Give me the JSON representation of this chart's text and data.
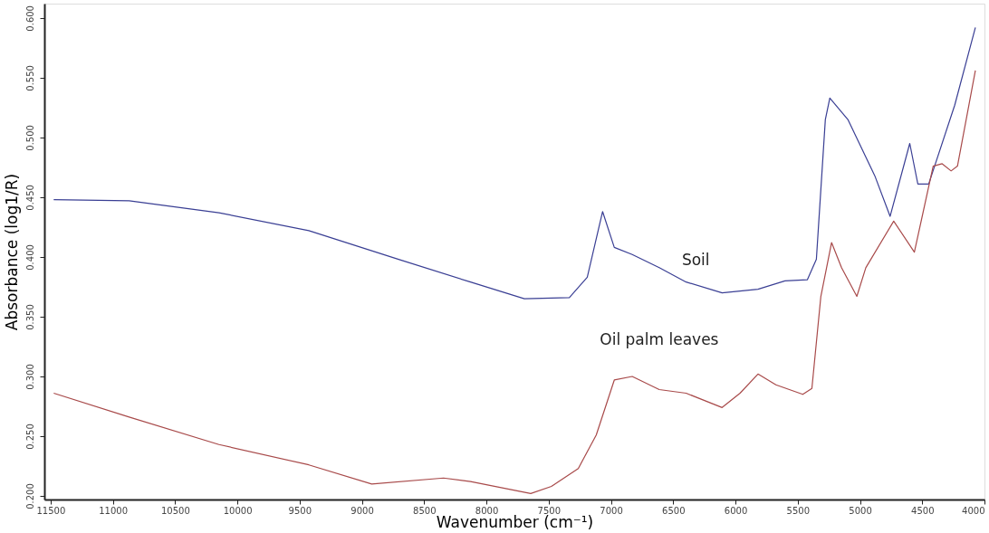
{
  "chart_data": {
    "type": "line",
    "xlabel": "Wavenumber (cm⁻¹)",
    "ylabel": "Absorbance (log1/R)",
    "xlim": [
      11550,
      4000
    ],
    "ylim": [
      0.197,
      0.612
    ],
    "xticks": [
      11500,
      11000,
      10500,
      10000,
      9500,
      9000,
      8500,
      8000,
      7500,
      7000,
      6500,
      6000,
      5500,
      5000,
      4500,
      4000
    ],
    "yticks": [
      {
        "value": 0.2,
        "label": "0.200"
      },
      {
        "value": 0.25,
        "label": "0.250"
      },
      {
        "value": 0.3,
        "label": "0.300"
      },
      {
        "value": 0.35,
        "label": "0.350"
      },
      {
        "value": 0.4,
        "label": "0.400"
      },
      {
        "value": 0.45,
        "label": "0.450"
      },
      {
        "value": 0.5,
        "label": "0.500"
      },
      {
        "value": 0.55,
        "label": "0.550"
      },
      {
        "value": 0.6,
        "label": "0.600"
      }
    ],
    "grid": false,
    "marker": "none",
    "line_style": "solid",
    "series": [
      {
        "name": "Soil",
        "color": "#3a3f94",
        "x": [
          11475,
          10869,
          10148,
          9426,
          8705,
          8128,
          7695,
          7334,
          7190,
          7067,
          6973,
          6829,
          6612,
          6396,
          6107,
          5819,
          5602,
          5422,
          5350,
          5278,
          5242,
          5097,
          4881,
          4758,
          4600,
          4535,
          4448,
          4239,
          4073
        ],
        "values": [
          0.448,
          0.447,
          0.437,
          0.422,
          0.398,
          0.379,
          0.365,
          0.366,
          0.383,
          0.438,
          0.408,
          0.402,
          0.391,
          0.379,
          0.37,
          0.373,
          0.38,
          0.381,
          0.398,
          0.515,
          0.533,
          0.515,
          0.468,
          0.434,
          0.495,
          0.461,
          0.461,
          0.527,
          0.592
        ]
      },
      {
        "name": "Oil palm leaves",
        "color": "#a84a4a",
        "x": [
          11475,
          10869,
          10148,
          9426,
          8921,
          8344,
          8128,
          7644,
          7478,
          7262,
          7118,
          6973,
          6829,
          6612,
          6396,
          6107,
          5963,
          5819,
          5675,
          5459,
          5386,
          5314,
          5228,
          5148,
          5025,
          4953,
          4729,
          4563,
          4412,
          4340,
          4268,
          4217,
          4073
        ],
        "values": [
          0.286,
          0.266,
          0.243,
          0.226,
          0.21,
          0.215,
          0.212,
          0.202,
          0.208,
          0.223,
          0.251,
          0.297,
          0.3,
          0.289,
          0.286,
          0.274,
          0.286,
          0.302,
          0.293,
          0.285,
          0.29,
          0.367,
          0.412,
          0.391,
          0.367,
          0.391,
          0.43,
          0.404,
          0.476,
          0.478,
          0.472,
          0.476,
          0.556
        ]
      }
    ]
  }
}
